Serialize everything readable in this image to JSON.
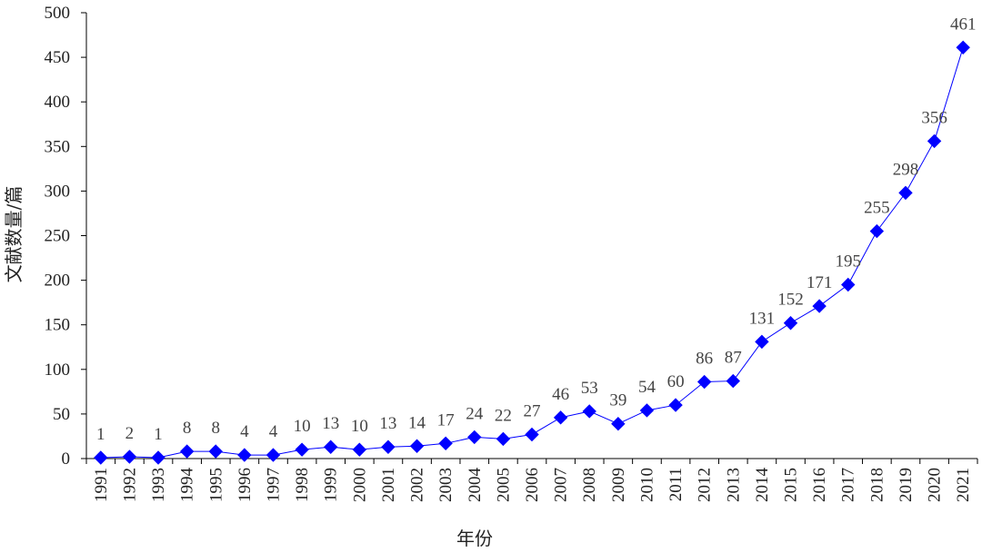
{
  "chart_data": {
    "type": "line",
    "xlabel": "年份",
    "ylabel": "文献数量/篇",
    "ylim": [
      0,
      500
    ],
    "yticks": [
      0,
      50,
      100,
      150,
      200,
      250,
      300,
      350,
      400,
      450,
      500
    ],
    "grid": false,
    "legend": "none",
    "categories": [
      "1991",
      "1992",
      "1993",
      "1994",
      "1995",
      "1996",
      "1997",
      "1998",
      "1999",
      "2000",
      "2001",
      "2002",
      "2003",
      "2004",
      "2005",
      "2006",
      "2007",
      "2008",
      "2009",
      "2010",
      "2011",
      "2012",
      "2013",
      "2014",
      "2015",
      "2016",
      "2017",
      "2018",
      "2019",
      "2020",
      "2021"
    ],
    "series": [
      {
        "values": [
          1,
          2,
          1,
          8,
          8,
          4,
          4,
          10,
          13,
          10,
          13,
          14,
          17,
          24,
          22,
          27,
          46,
          53,
          39,
          54,
          60,
          86,
          87,
          131,
          152,
          171,
          195,
          255,
          298,
          356,
          461
        ],
        "color": "#0000ff",
        "marker": "diamond"
      }
    ]
  }
}
